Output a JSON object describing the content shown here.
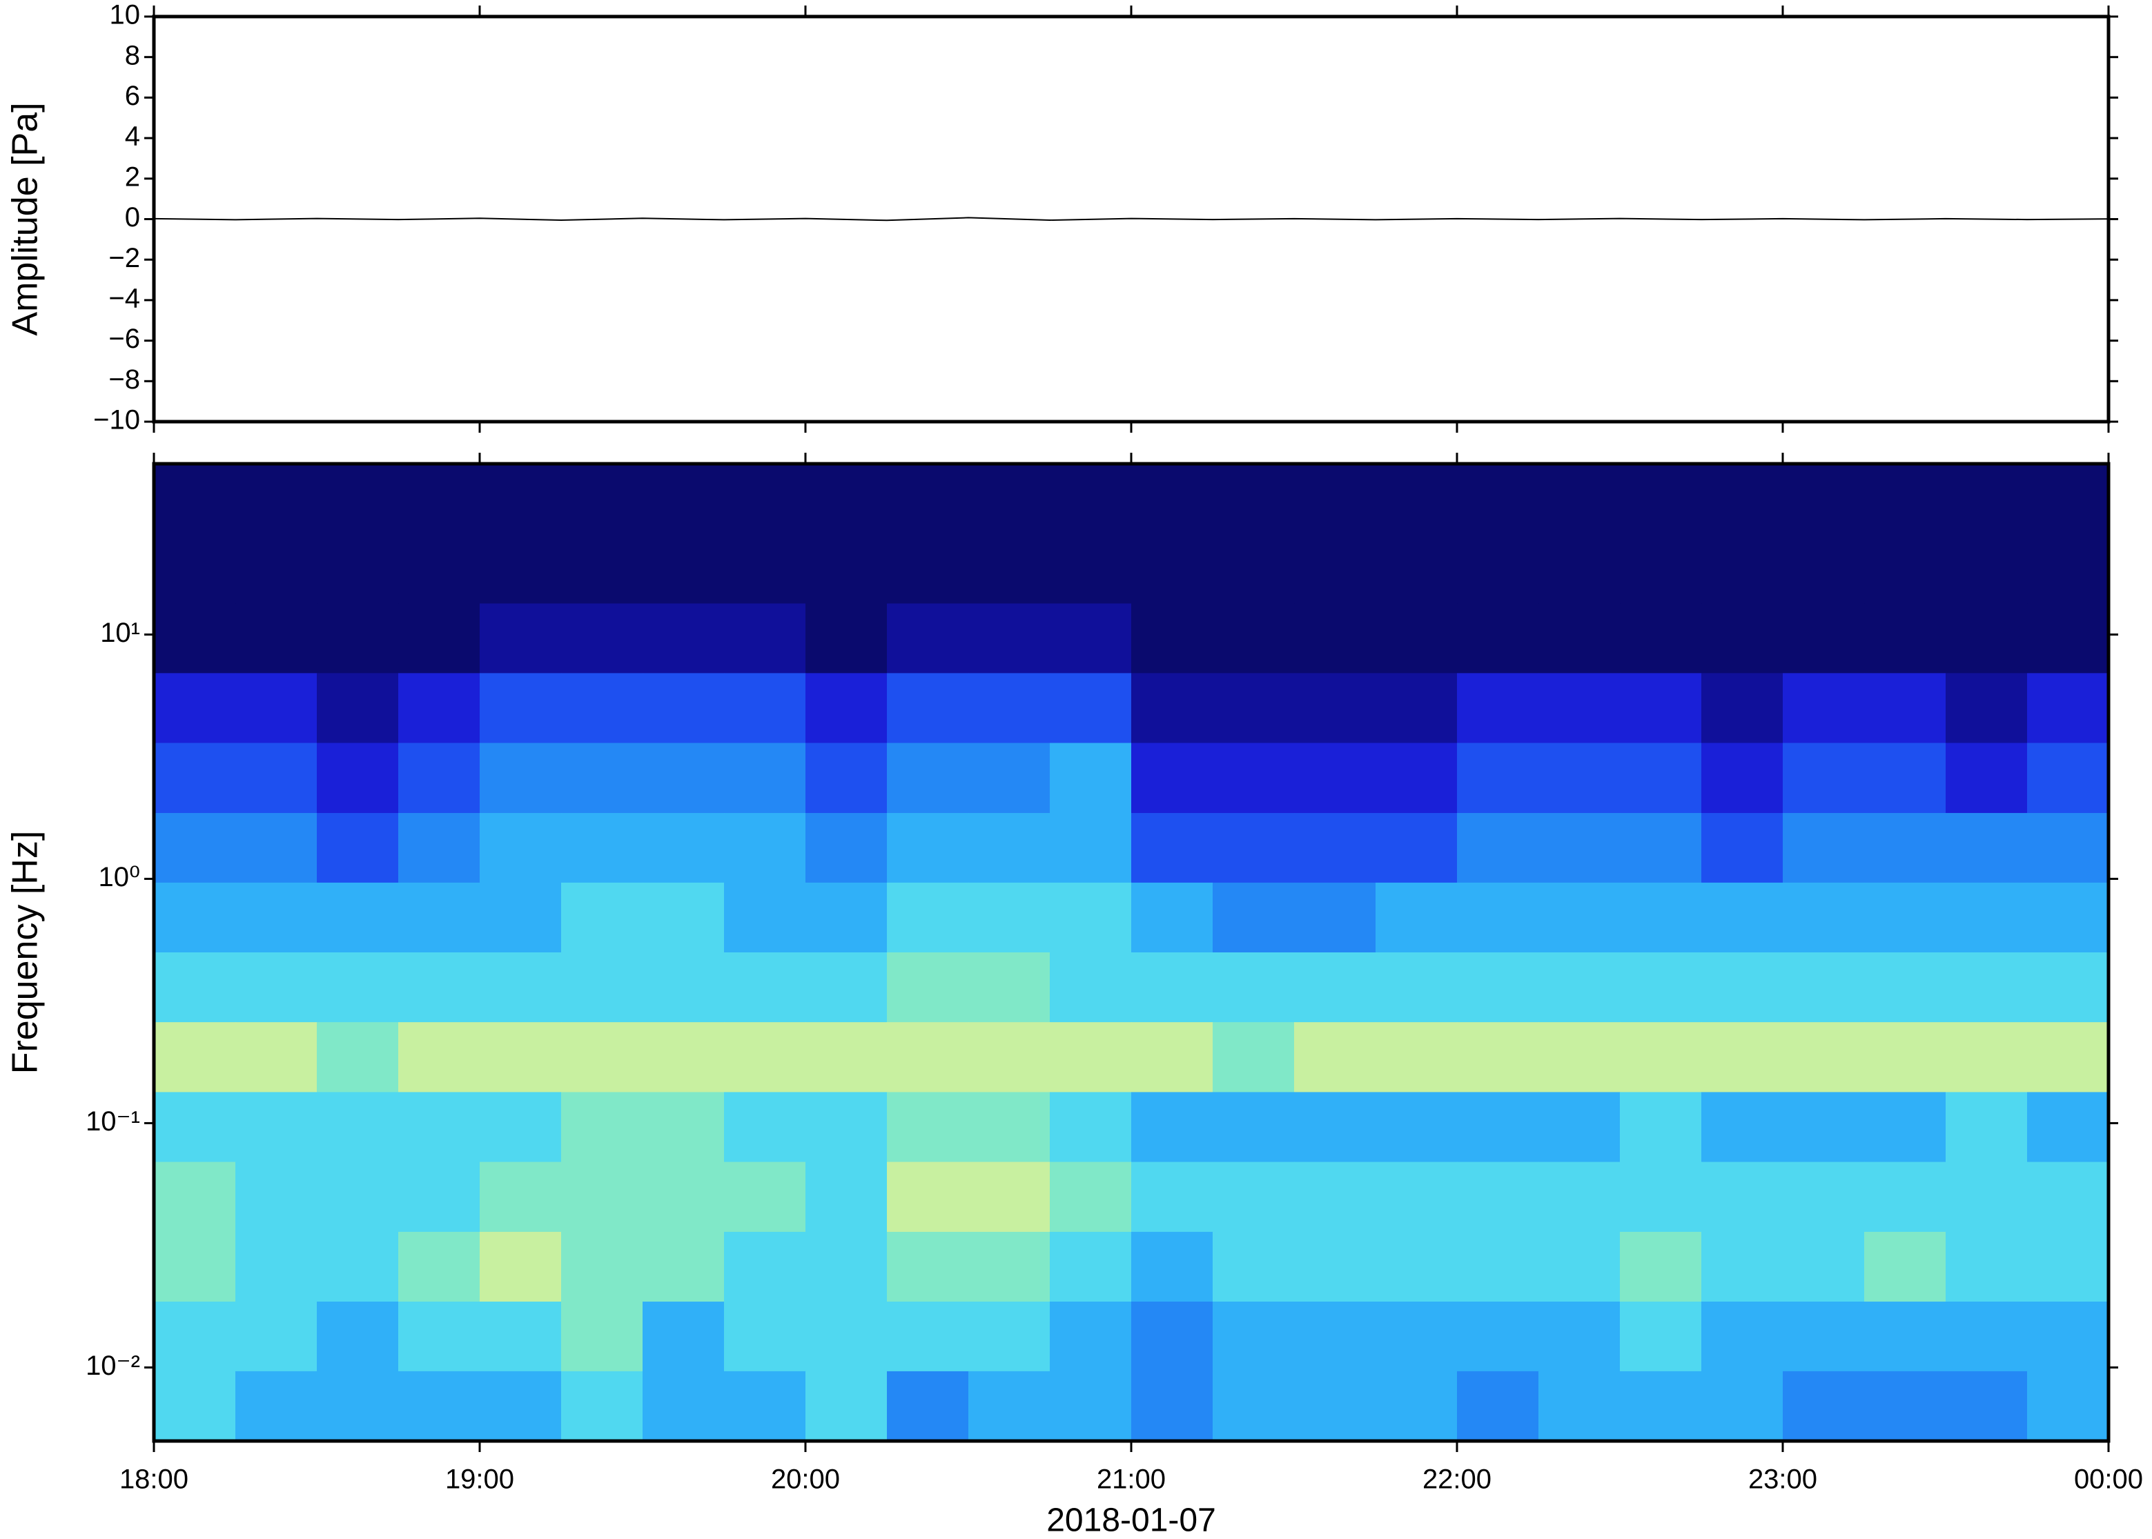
{
  "chart_data": [
    {
      "type": "line",
      "ylabel": "Amplitude [Pa]",
      "color": "#000000",
      "x": [
        18,
        18.25,
        18.5,
        18.75,
        19,
        19.25,
        19.5,
        19.75,
        20,
        20.25,
        20.5,
        20.75,
        21,
        21.25,
        21.5,
        21.75,
        22,
        22.25,
        22.5,
        22.75,
        23,
        23.25,
        23.5,
        23.75,
        24
      ],
      "values": [
        0.02,
        -0.03,
        0.03,
        -0.02,
        0.04,
        -0.05,
        0.04,
        -0.03,
        0.03,
        -0.06,
        0.07,
        -0.05,
        0.03,
        -0.02,
        0.02,
        -0.03,
        0.02,
        -0.02,
        0.03,
        -0.02,
        0.02,
        -0.03,
        0.02,
        -0.02,
        0.01
      ],
      "xlim": [
        18,
        24
      ],
      "xticks": [
        18,
        19,
        20,
        21,
        22,
        23,
        24
      ],
      "ylim": [
        -10,
        10
      ],
      "yticks": [
        {
          "value": -10,
          "label": "−10"
        },
        {
          "value": -8,
          "label": "−8"
        },
        {
          "value": -6,
          "label": "−6"
        },
        {
          "value": -4,
          "label": "−4"
        },
        {
          "value": -2,
          "label": "−2"
        },
        0,
        2,
        4,
        6,
        8,
        10
      ]
    },
    {
      "type": "heatmap",
      "ylabel": "Frequency [Hz]",
      "xlabel": "2018-01-07",
      "yscale": "log",
      "xlim": [
        18,
        24
      ],
      "xticks": [
        {
          "value": 18,
          "label": "18:00"
        },
        {
          "value": 19,
          "label": "19:00"
        },
        {
          "value": 20,
          "label": "20:00"
        },
        {
          "value": 21,
          "label": "21:00"
        },
        {
          "value": 22,
          "label": "22:00"
        },
        {
          "value": 23,
          "label": "23:00"
        },
        {
          "value": 24,
          "label": "00:00"
        }
      ],
      "ylim": [
        0.005,
        50
      ],
      "yticks": [
        {
          "value": 0.01,
          "label": "10⁻²"
        },
        {
          "value": 0.1,
          "label": "10⁻¹"
        },
        {
          "value": 1,
          "label": "10⁰"
        },
        {
          "value": 10,
          "label": "10¹"
        }
      ],
      "colors": [
        "#0a0a6e",
        "#10109a",
        "#1a20d8",
        "#1e50f0",
        "#2488f5",
        "#30b0f8",
        "#50d8f0",
        "#80e8c8",
        "#c8f0a0",
        "#f0f090"
      ],
      "x_edges": [
        18,
        18.25,
        18.5,
        18.75,
        19,
        19.25,
        19.5,
        19.75,
        20,
        20.25,
        20.5,
        20.75,
        21,
        21.25,
        21.5,
        21.75,
        22,
        22.25,
        22.5,
        22.75,
        23,
        23.25,
        23.5,
        23.75,
        24
      ],
      "y_edges": [
        50,
        25.9,
        13.4,
        6.95,
        3.6,
        1.86,
        0.965,
        0.5,
        0.259,
        0.134,
        0.0694,
        0.0359,
        0.0186,
        0.00965,
        0.005
      ],
      "values": [
        [
          0,
          0,
          0,
          0,
          0,
          0,
          0,
          0,
          0,
          0,
          0,
          0,
          0,
          0,
          0,
          0,
          0,
          0,
          0,
          0,
          0,
          0,
          0,
          0
        ],
        [
          0,
          0,
          0,
          0,
          0,
          0,
          0,
          0,
          0,
          0,
          0,
          0,
          0,
          0,
          0,
          0,
          0,
          0,
          0,
          0,
          0,
          0,
          0,
          0
        ],
        [
          0,
          0,
          0,
          0,
          1,
          1,
          1,
          1,
          0,
          1,
          1,
          1,
          0,
          0,
          0,
          0,
          0,
          0,
          0,
          0,
          0,
          0,
          0,
          0
        ],
        [
          2,
          2,
          1,
          2,
          3,
          3,
          3,
          3,
          2,
          3,
          3,
          3,
          1,
          1,
          1,
          1,
          2,
          2,
          2,
          1,
          2,
          2,
          1,
          2
        ],
        [
          3,
          3,
          2,
          3,
          4,
          4,
          4,
          4,
          3,
          4,
          4,
          5,
          2,
          2,
          2,
          2,
          3,
          3,
          3,
          2,
          3,
          3,
          2,
          3
        ],
        [
          4,
          4,
          3,
          4,
          5,
          5,
          5,
          5,
          4,
          5,
          5,
          5,
          3,
          3,
          3,
          3,
          4,
          4,
          4,
          3,
          4,
          4,
          4,
          4
        ],
        [
          5,
          5,
          5,
          5,
          5,
          6,
          6,
          5,
          5,
          6,
          6,
          6,
          5,
          4,
          4,
          5,
          5,
          5,
          5,
          5,
          5,
          5,
          5,
          5
        ],
        [
          6,
          6,
          6,
          6,
          6,
          6,
          6,
          6,
          6,
          7,
          7,
          6,
          6,
          6,
          6,
          6,
          6,
          6,
          6,
          6,
          6,
          6,
          6,
          6
        ],
        [
          8,
          8,
          7,
          8,
          8,
          8,
          8,
          8,
          8,
          8,
          8,
          8,
          8,
          7,
          8,
          8,
          8,
          8,
          8,
          8,
          8,
          8,
          8,
          8
        ],
        [
          6,
          6,
          6,
          6,
          6,
          7,
          7,
          6,
          6,
          7,
          7,
          6,
          5,
          5,
          5,
          5,
          5,
          5,
          6,
          5,
          5,
          5,
          6,
          5
        ],
        [
          7,
          6,
          6,
          6,
          7,
          7,
          7,
          7,
          6,
          8,
          8,
          7,
          6,
          6,
          6,
          6,
          6,
          6,
          6,
          6,
          6,
          6,
          6,
          6
        ],
        [
          7,
          6,
          6,
          7,
          8,
          7,
          7,
          6,
          6,
          7,
          7,
          6,
          5,
          6,
          6,
          6,
          6,
          6,
          7,
          6,
          6,
          7,
          6,
          6
        ],
        [
          6,
          6,
          5,
          6,
          6,
          7,
          5,
          6,
          6,
          6,
          6,
          5,
          4,
          5,
          5,
          5,
          5,
          5,
          6,
          5,
          5,
          5,
          5,
          5
        ],
        [
          6,
          5,
          5,
          5,
          5,
          6,
          5,
          5,
          6,
          4,
          5,
          5,
          4,
          5,
          5,
          5,
          4,
          5,
          5,
          5,
          4,
          4,
          4,
          5
        ]
      ]
    }
  ]
}
